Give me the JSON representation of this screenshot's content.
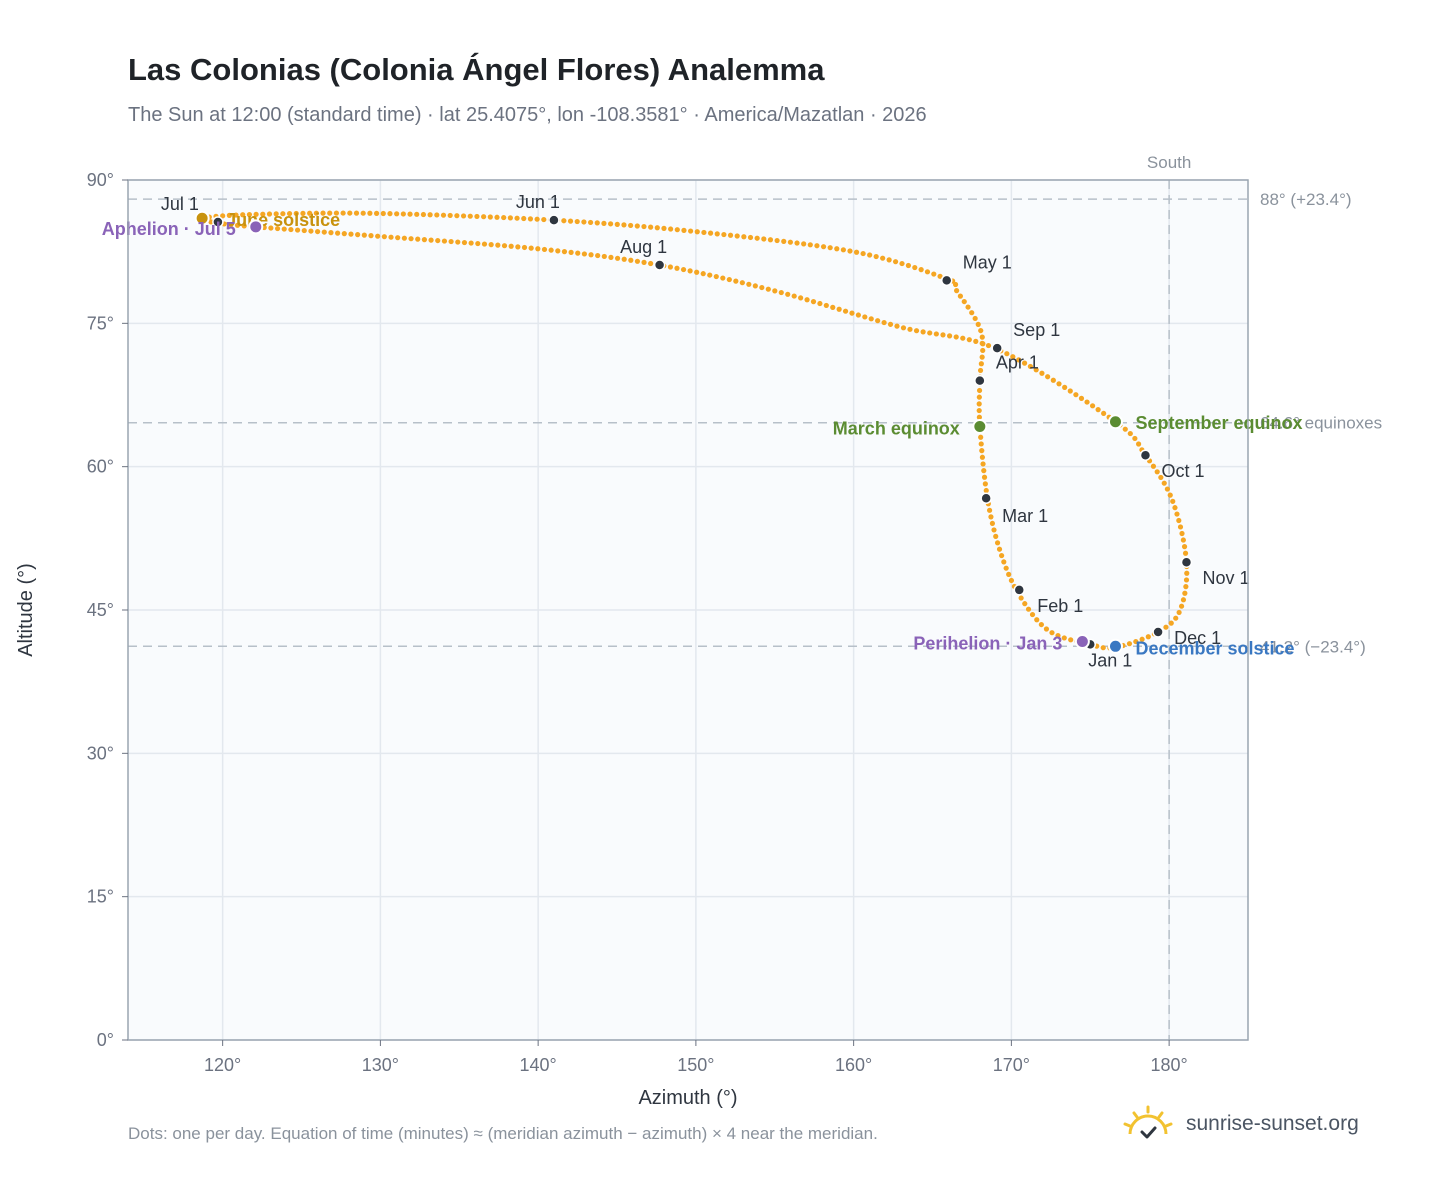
{
  "title": "Las Colonias (Colonia Ángel Flores) Analemma",
  "subtitle": "The Sun at 12:00 (standard time) · lat 25.4075°, lon -108.3581° · America/Mazatlan · 2026",
  "footnote": "Dots: one per day. Equation of time (minutes) ≈ (meridian azimuth − azimuth) × 4 near the meridian.",
  "brand": {
    "name": "sunrise-sunset.org",
    "icon": "sun-logo-icon",
    "color": "#f2c230"
  },
  "colors": {
    "path": "#f5a623",
    "month_marker": "#2f3640",
    "solstice_june": "#c8920e",
    "equinox": "#5b8c32",
    "solstice_december": "#3a78c2",
    "apsis": "#8a63b8",
    "reference_line": "#b7c0c9"
  },
  "chart_data": {
    "type": "scatter",
    "title": "Las Colonias (Colonia Ángel Flores) Analemma",
    "xlabel": "Azimuth (°)",
    "ylabel": "Altitude (°)",
    "xlim": [
      114,
      185
    ],
    "ylim": [
      0,
      90
    ],
    "xticks": [
      120,
      130,
      140,
      150,
      160,
      170,
      180
    ],
    "yticks": [
      0,
      15,
      30,
      45,
      60,
      75,
      90
    ],
    "xtick_labels": [
      "120°",
      "130°",
      "140°",
      "150°",
      "160°",
      "170°",
      "180°"
    ],
    "ytick_labels": [
      "0°",
      "15°",
      "30°",
      "45°",
      "60°",
      "75°",
      "90°"
    ],
    "grid": true,
    "series": [
      {
        "kind": "analemma",
        "points": [
          {
            "x": 175.0,
            "y": 41.4
          },
          {
            "x": 172.4,
            "y": 42.8
          },
          {
            "x": 170.6,
            "y": 46.3
          },
          {
            "x": 169.4,
            "y": 50.6
          },
          {
            "x": 168.5,
            "y": 56.5
          },
          {
            "x": 168.0,
            "y": 64.3
          },
          {
            "x": 168.0,
            "y": 69.0
          },
          {
            "x": 168.1,
            "y": 74.0
          },
          {
            "x": 166.5,
            "y": 78.5
          },
          {
            "x": 166.0,
            "y": 79.6
          },
          {
            "x": 160.0,
            "y": 82.5
          },
          {
            "x": 150.0,
            "y": 84.6
          },
          {
            "x": 141.0,
            "y": 85.8
          },
          {
            "x": 130.0,
            "y": 86.5
          },
          {
            "x": 122.0,
            "y": 86.4
          },
          {
            "x": 118.7,
            "y": 86.0
          },
          {
            "x": 119.7,
            "y": 85.5
          },
          {
            "x": 122.1,
            "y": 85.1
          },
          {
            "x": 130.0,
            "y": 84.1
          },
          {
            "x": 140.0,
            "y": 82.8
          },
          {
            "x": 147.7,
            "y": 81.1
          },
          {
            "x": 155.0,
            "y": 78.4
          },
          {
            "x": 163.0,
            "y": 74.6
          },
          {
            "x": 169.1,
            "y": 72.3
          },
          {
            "x": 176.6,
            "y": 64.7
          },
          {
            "x": 178.5,
            "y": 61.2
          },
          {
            "x": 180.2,
            "y": 56.5
          },
          {
            "x": 181.1,
            "y": 50.0
          },
          {
            "x": 180.7,
            "y": 45.0
          },
          {
            "x": 179.3,
            "y": 42.7
          },
          {
            "x": 176.6,
            "y": 41.1
          }
        ]
      }
    ],
    "month_markers": [
      {
        "label": "Jan 1",
        "x": 175.0,
        "y": 41.4
      },
      {
        "label": "Feb 1",
        "x": 170.5,
        "y": 47.1
      },
      {
        "label": "Mar 1",
        "x": 168.4,
        "y": 56.7
      },
      {
        "label": "Apr 1",
        "x": 168.0,
        "y": 69.0
      },
      {
        "label": "May 1",
        "x": 165.9,
        "y": 79.5
      },
      {
        "label": "Jun 1",
        "x": 141.0,
        "y": 85.8
      },
      {
        "label": "Jul 1",
        "x": 119.7,
        "y": 85.6
      },
      {
        "label": "Aug 1",
        "x": 147.7,
        "y": 81.1
      },
      {
        "label": "Sep 1",
        "x": 169.1,
        "y": 72.4
      },
      {
        "label": "Oct 1",
        "x": 178.5,
        "y": 61.2
      },
      {
        "label": "Nov 1",
        "x": 181.1,
        "y": 50.0
      },
      {
        "label": "Dec 1",
        "x": 179.3,
        "y": 42.7
      }
    ],
    "events": [
      {
        "label": "June solstice",
        "x": 118.7,
        "y": 86.0,
        "color_key": "solstice_june"
      },
      {
        "label": "Aphelion · Jul 5",
        "x": 122.1,
        "y": 85.1,
        "color_key": "apsis"
      },
      {
        "label": "March equinox",
        "x": 168.0,
        "y": 64.2,
        "color_key": "equinox"
      },
      {
        "label": "September equinox",
        "x": 176.6,
        "y": 64.7,
        "color_key": "equinox"
      },
      {
        "label": "Perihelion · Jan 3",
        "x": 174.5,
        "y": 41.7,
        "color_key": "apsis"
      },
      {
        "label": "December solstice",
        "x": 176.6,
        "y": 41.2,
        "color_key": "solstice_december"
      }
    ],
    "reference_lines": [
      {
        "orientation": "horizontal",
        "y": 88.0,
        "label": "88° (+23.4°)"
      },
      {
        "orientation": "horizontal",
        "y": 64.6,
        "label": "64.6° equinoxes"
      },
      {
        "orientation": "horizontal",
        "y": 41.2,
        "label": "41.2° (−23.4°)"
      },
      {
        "orientation": "vertical",
        "x": 180,
        "label": "South"
      }
    ]
  }
}
